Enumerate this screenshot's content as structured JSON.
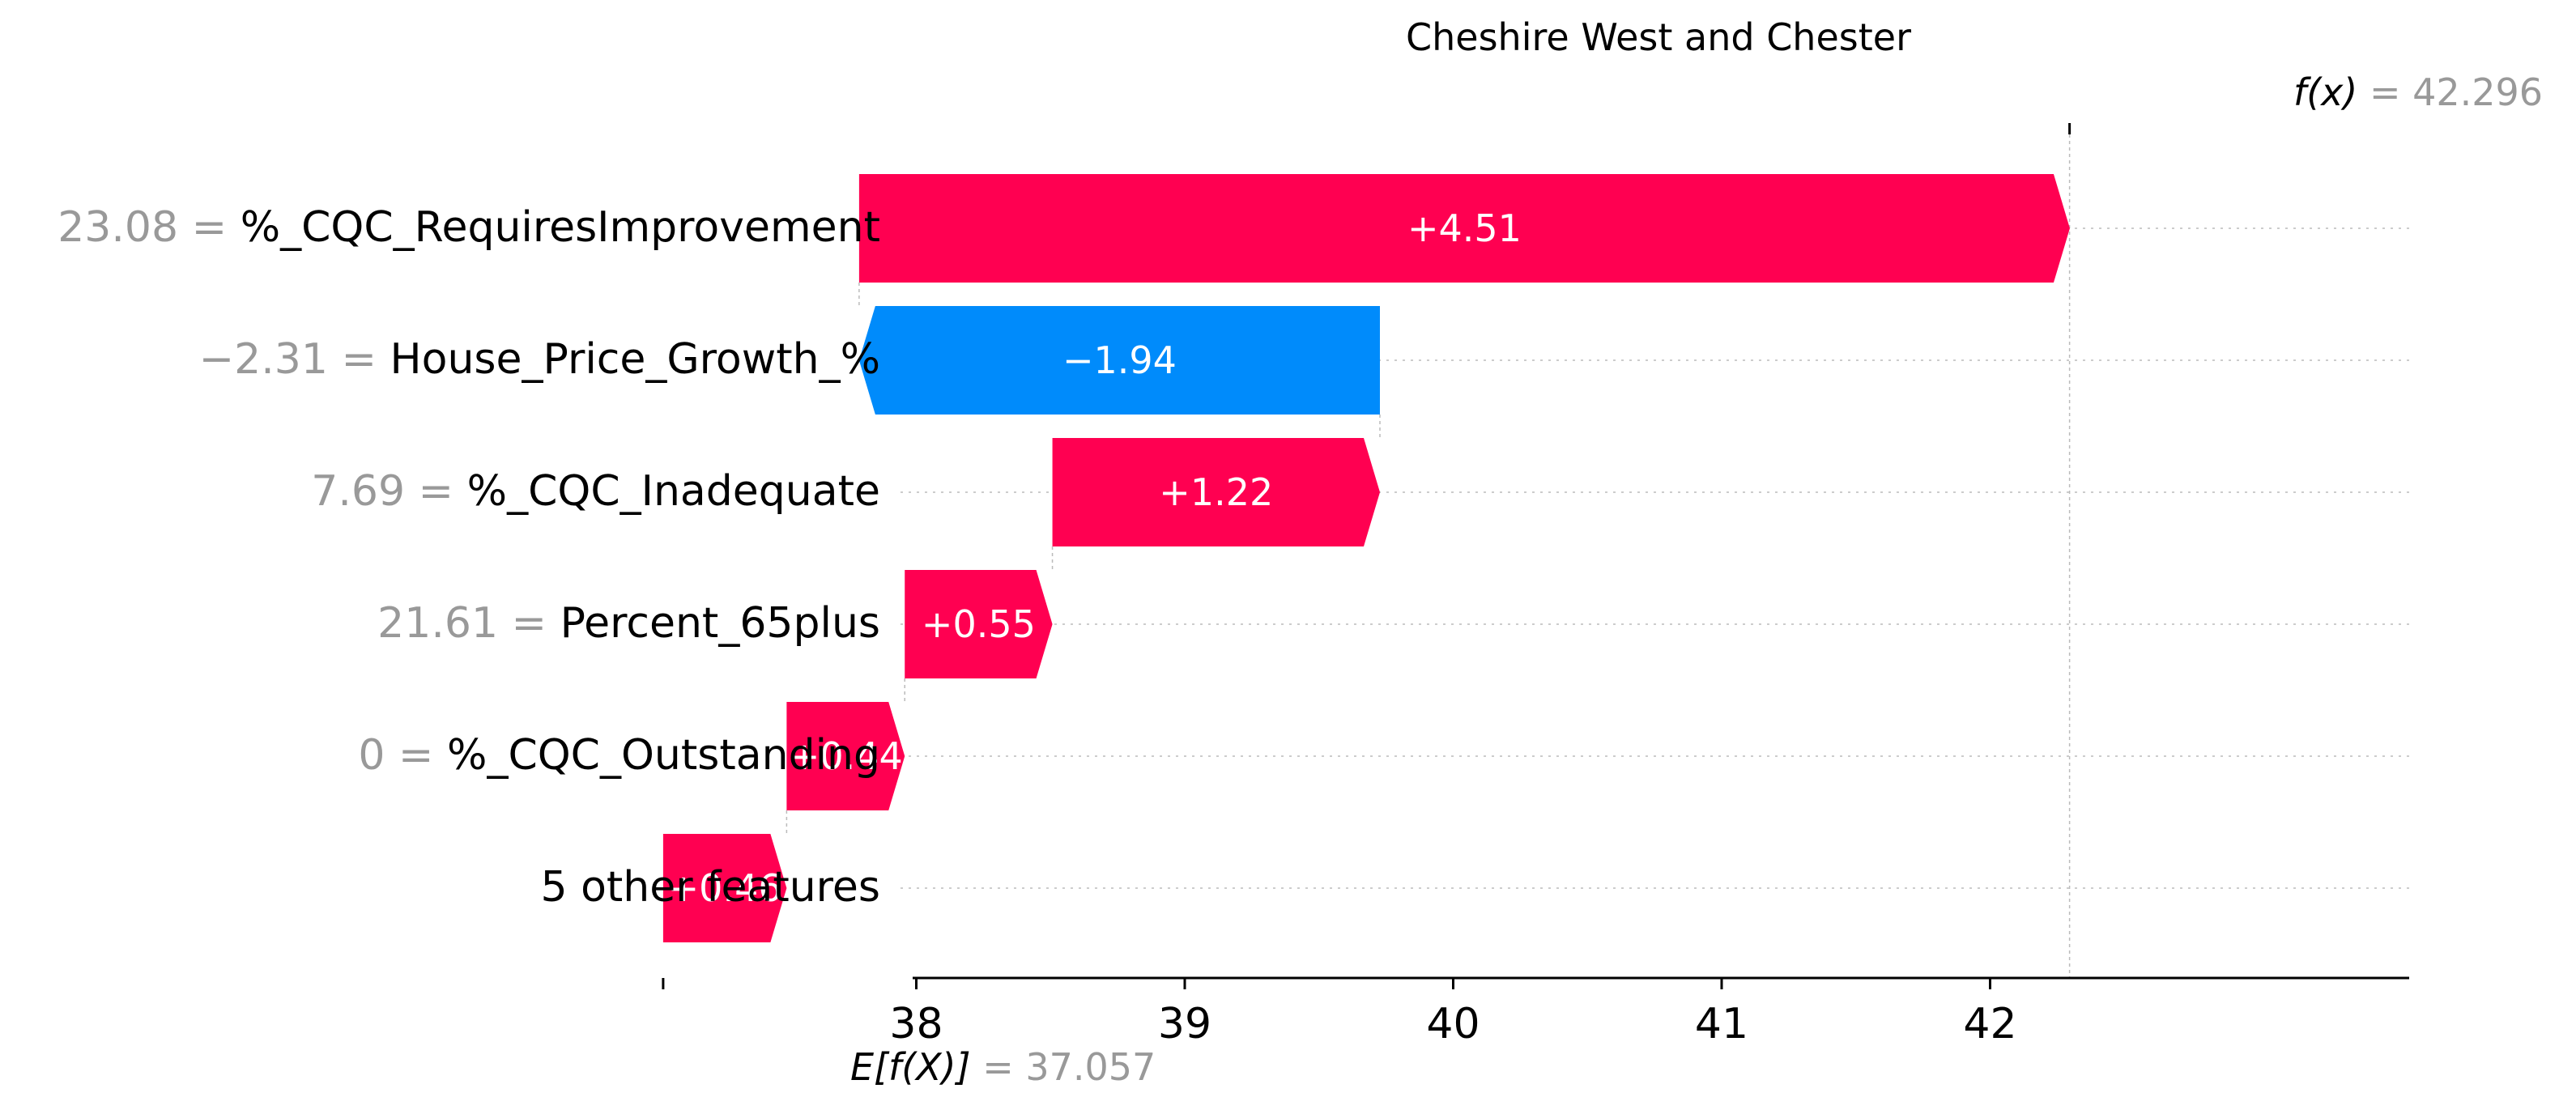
{
  "chart_data": {
    "type": "waterfall",
    "title": "Cheshire West and Chester",
    "base_value": 37.057,
    "base_label": "E[f(X)]",
    "base_value_text": "= 37.057",
    "output_value": 42.296,
    "output_label": "f(x)",
    "output_value_text": "= 42.296",
    "xlim": [
      37.0,
      42.6
    ],
    "xticks": [
      38,
      39,
      40,
      41,
      42
    ],
    "grid": false,
    "features": [
      {
        "value_text": "23.08",
        "name": "%_CQC_RequiresImprovement",
        "shap": 4.51,
        "label": "+4.51"
      },
      {
        "value_text": "−2.31",
        "name": "House_Price_Growth_%",
        "shap": -1.94,
        "label": "−1.94"
      },
      {
        "value_text": "7.69",
        "name": "%_CQC_Inadequate",
        "shap": 1.22,
        "label": "+1.22"
      },
      {
        "value_text": "21.61",
        "name": "Percent_65plus",
        "shap": 0.55,
        "label": "+0.55"
      },
      {
        "value_text": "0",
        "name": "%_CQC_Outstanding",
        "shap": 0.44,
        "label": "+0.44"
      },
      {
        "value_text": "",
        "name": "5 other features",
        "shap": 0.46,
        "label": "+0.46"
      }
    ],
    "colors": {
      "positive": "#ff0051",
      "negative": "#008bfb",
      "feature_value": "#999999",
      "text": "#000000"
    }
  }
}
